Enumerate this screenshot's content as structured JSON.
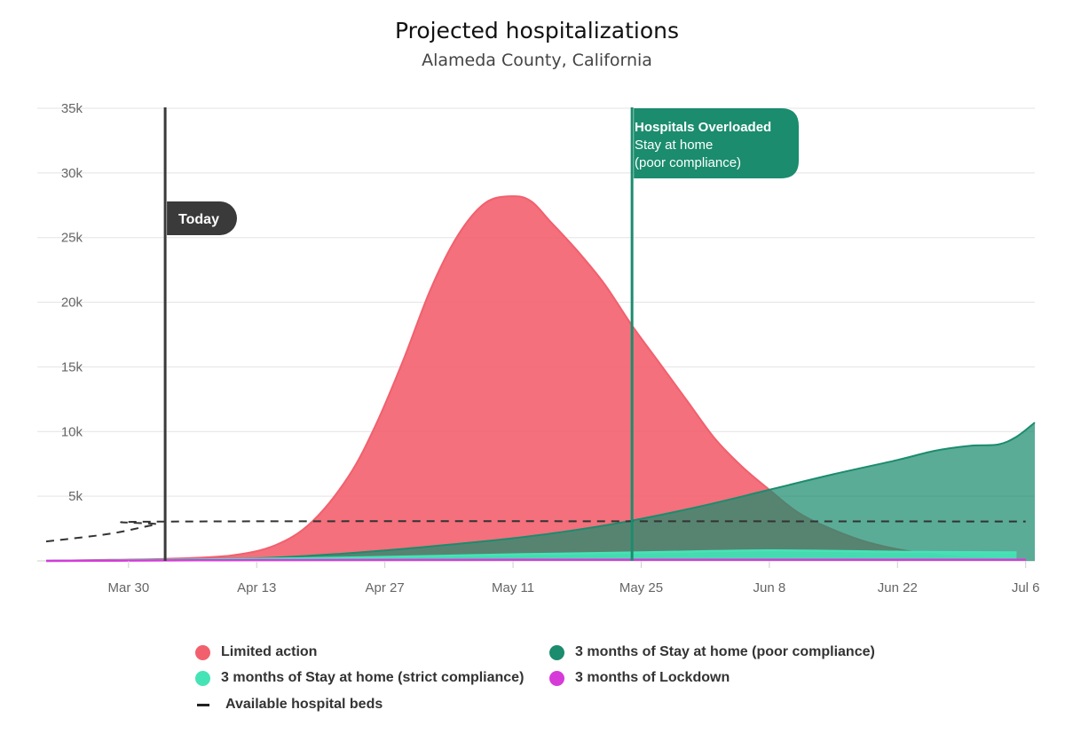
{
  "chart_data": {
    "type": "area",
    "title": "Projected hospitalizations",
    "subtitle": "Alameda County, California",
    "x_ticks": [
      "Mar 30",
      "Apr 13",
      "Apr 27",
      "May 11",
      "May 25",
      "Jun 8",
      "Jun 22",
      "Jul 6"
    ],
    "y_ticks": [
      "5k",
      "10k",
      "15k",
      "20k",
      "25k",
      "30k",
      "35k"
    ],
    "xlim": [
      "Mar 21",
      "Jul 7"
    ],
    "ylim": [
      0,
      35000
    ],
    "grid": true,
    "legend_position": "bottom",
    "series": [
      {
        "name": "Limited action",
        "color": "#f2606e",
        "x": [
          "Mar 21",
          "Mar 28",
          "Apr 3",
          "Apr 10",
          "Apr 15",
          "Apr 19",
          "Apr 23",
          "Apr 26",
          "Apr 29",
          "May 2",
          "May 5",
          "May 8",
          "May 11",
          "May 13",
          "May 15",
          "May 18",
          "May 21",
          "May 24",
          "May 27",
          "May 30",
          "Jun 2",
          "Jun 5",
          "Jun 8",
          "Jun 11",
          "Jun 14",
          "Jun 18",
          "Jun 22",
          "Jun 26",
          "Jun 30",
          "Jul 4"
        ],
        "values": [
          0,
          80,
          150,
          400,
          1200,
          3000,
          6500,
          10500,
          15500,
          21000,
          25200,
          27700,
          28200,
          27800,
          26300,
          24000,
          21400,
          18200,
          15300,
          12400,
          9500,
          7300,
          5500,
          3800,
          2700,
          1600,
          900,
          500,
          250,
          120
        ]
      },
      {
        "name": "3 months of Stay at home (poor compliance)",
        "color": "#1b8c6e",
        "x": [
          "Mar 21",
          "Apr 3",
          "Apr 13",
          "Apr 20",
          "Apr 27",
          "May 4",
          "May 11",
          "May 18",
          "May 25",
          "Jun 1",
          "Jun 8",
          "Jun 15",
          "Jun 22",
          "Jun 26",
          "Jun 30",
          "Jul 3",
          "Jul 5",
          "Jul 7"
        ],
        "values": [
          0,
          100,
          200,
          450,
          800,
          1250,
          1750,
          2400,
          3250,
          4300,
          5500,
          6700,
          7800,
          8500,
          8900,
          9000,
          9600,
          10700
        ]
      },
      {
        "name": "3 months of Stay at home (strict compliance)",
        "color": "#46e3b7",
        "x": [
          "Mar 21",
          "Apr 13",
          "Apr 27",
          "May 11",
          "May 25",
          "Jun 8",
          "Jun 22",
          "Jul 5"
        ],
        "values": [
          0,
          150,
          300,
          500,
          650,
          800,
          700,
          650
        ]
      },
      {
        "name": "3 months of Lockdown",
        "color": "#d63bd9",
        "x": [
          "Mar 21",
          "Apr 13",
          "May 11",
          "Jun 8",
          "Jul 6"
        ],
        "values": [
          0,
          60,
          80,
          80,
          80
        ]
      },
      {
        "name": "Available hospital beds",
        "color": "#333333",
        "style": "dashed",
        "x": [
          "Mar 21",
          "Mar 28",
          "Apr 2",
          "Apr 6",
          "Jul 6"
        ],
        "values": [
          1500,
          2100,
          2800,
          3050,
          3050
        ]
      }
    ],
    "annotations": [
      {
        "date": "Apr 3",
        "label": "Today",
        "color": "#3a3a3a"
      },
      {
        "date": "May 24",
        "title": "Hospitals Overloaded",
        "text1": "Stay at home",
        "text2": "(poor compliance)",
        "color": "#1b8c6e"
      }
    ]
  },
  "legend": {
    "limited": "Limited action",
    "poor": "3 months of Stay at home (poor compliance)",
    "strict": "3 months of Stay at home (strict compliance)",
    "lockdown": "3 months of Lockdown",
    "beds": "Available hospital beds"
  }
}
